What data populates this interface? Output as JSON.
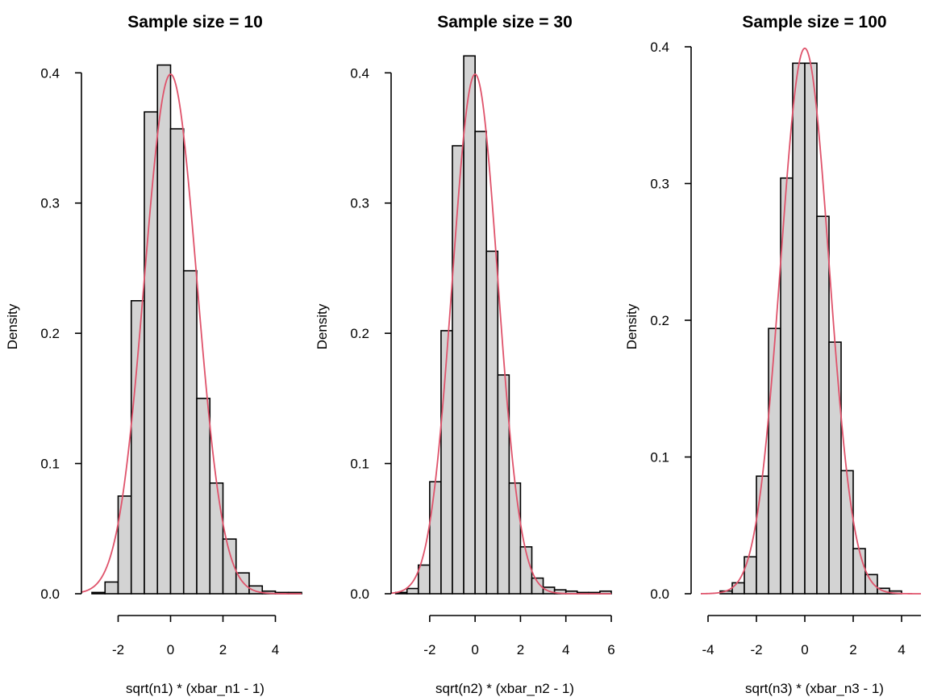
{
  "chart_data": [
    {
      "type": "bar",
      "subtype": "histogram-with-density-curve",
      "title": "Sample size = 10",
      "xlabel": "sqrt(n1) * (xbar_n1 - 1)",
      "ylabel": "Density",
      "x_ticks": [
        -2,
        0,
        2,
        4
      ],
      "y_ticks": [
        0.0,
        0.1,
        0.2,
        0.3,
        0.4
      ],
      "y_tick_labels": [
        "0.0",
        "0.1",
        "0.2",
        "0.3",
        "0.4"
      ],
      "xlim": [
        -3.4,
        5.0
      ],
      "ylim": [
        0,
        0.42
      ],
      "axis_x_range": [
        -2,
        4
      ],
      "axis_y_range": [
        0,
        0.4
      ],
      "bin_edges": [
        -3.0,
        -2.5,
        -2.0,
        -1.5,
        -1.0,
        -0.5,
        0.0,
        0.5,
        1.0,
        1.5,
        2.0,
        2.5,
        3.0,
        3.5,
        4.0,
        4.5,
        5.0
      ],
      "values": [
        0.001,
        0.009,
        0.075,
        0.225,
        0.37,
        0.406,
        0.357,
        0.248,
        0.15,
        0.085,
        0.042,
        0.016,
        0.006,
        0.002,
        0.001,
        0.001
      ],
      "density_curve": {
        "type": "normal",
        "mean": 0,
        "sd": 1,
        "color": "#df536b"
      },
      "bar_color": "#d3d3d3",
      "grid": false
    },
    {
      "type": "bar",
      "subtype": "histogram-with-density-curve",
      "title": "Sample size = 30",
      "xlabel": "sqrt(n2) * (xbar_n2 - 1)",
      "ylabel": "Density",
      "x_ticks": [
        -2,
        0,
        2,
        4,
        6
      ],
      "y_ticks": [
        0.0,
        0.1,
        0.2,
        0.3,
        0.4
      ],
      "y_tick_labels": [
        "0.0",
        "0.1",
        "0.2",
        "0.3",
        "0.4"
      ],
      "xlim": [
        -3.7,
        6.0
      ],
      "ylim": [
        0,
        0.42
      ],
      "axis_x_range": [
        -2,
        6
      ],
      "axis_y_range": [
        0,
        0.4
      ],
      "bin_edges": [
        -3.5,
        -3.0,
        -2.5,
        -2.0,
        -1.5,
        -1.0,
        -0.5,
        0.0,
        0.5,
        1.0,
        1.5,
        2.0,
        2.5,
        3.0,
        3.5,
        4.0,
        4.5,
        5.0,
        5.5,
        6.0
      ],
      "values": [
        0.001,
        0.004,
        0.022,
        0.086,
        0.202,
        0.344,
        0.413,
        0.355,
        0.263,
        0.168,
        0.085,
        0.036,
        0.012,
        0.005,
        0.003,
        0.002,
        0.001,
        0.001,
        0.002
      ],
      "density_curve": {
        "type": "normal",
        "mean": 0,
        "sd": 1,
        "color": "#df536b"
      },
      "bar_color": "#d3d3d3",
      "grid": false
    },
    {
      "type": "bar",
      "subtype": "histogram-with-density-curve",
      "title": "Sample size = 100",
      "xlabel": "sqrt(n3) * (xbar_n3 - 1)",
      "ylabel": "Density",
      "x_ticks": [
        -4,
        -2,
        0,
        2,
        4
      ],
      "y_ticks": [
        0.0,
        0.1,
        0.2,
        0.3,
        0.4
      ],
      "y_tick_labels": [
        "0.0",
        "0.1",
        "0.2",
        "0.3",
        "0.4"
      ],
      "xlim": [
        -4.3,
        4.8
      ],
      "ylim": [
        0,
        0.4
      ],
      "axis_x_range": [
        -4,
        4.8
      ],
      "axis_y_range": [
        0,
        0.4
      ],
      "bin_edges": [
        -3.5,
        -3.0,
        -2.5,
        -2.0,
        -1.5,
        -1.0,
        -0.5,
        0.0,
        0.5,
        1.0,
        1.5,
        2.0,
        2.5,
        3.0,
        3.5,
        4.0
      ],
      "values": [
        0.002,
        0.008,
        0.027,
        0.086,
        0.194,
        0.304,
        0.388,
        0.388,
        0.276,
        0.184,
        0.09,
        0.033,
        0.014,
        0.004,
        0.002
      ],
      "density_curve": {
        "type": "normal",
        "mean": 0,
        "sd": 1,
        "color": "#df536b"
      },
      "bar_color": "#d3d3d3",
      "grid": false
    }
  ]
}
